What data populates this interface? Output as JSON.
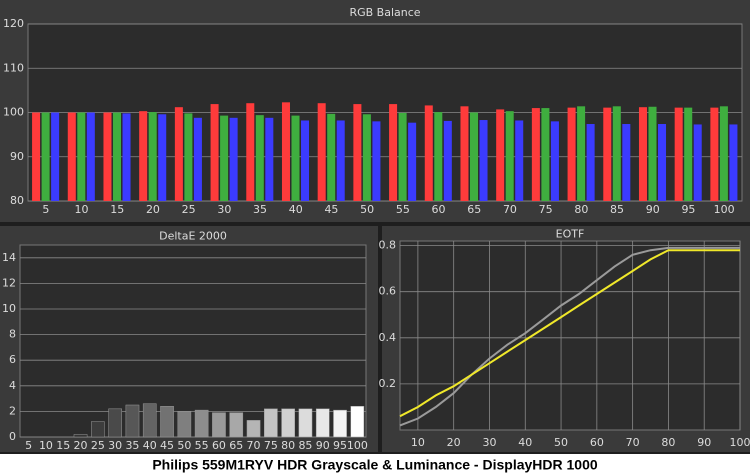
{
  "caption": "Philips 559M1RYV HDR Grayscale & Luminance - DisplayHDR 1000",
  "chart_data": [
    {
      "type": "bar",
      "title": "RGB Balance",
      "categories": [
        "5",
        "10",
        "15",
        "20",
        "25",
        "30",
        "35",
        "40",
        "45",
        "50",
        "55",
        "60",
        "65",
        "70",
        "75",
        "80",
        "85",
        "90",
        "95",
        "100"
      ],
      "series": [
        {
          "color": "#ff3b3b",
          "values": [
            100,
            100,
            100,
            100.3,
            101.2,
            101.9,
            102.1,
            102.3,
            102.1,
            101.9,
            101.9,
            101.6,
            101.4,
            100.7,
            101.0,
            101.1,
            101.1,
            101.2,
            101.1,
            101.1
          ]
        },
        {
          "color": "#3fae3f",
          "values": [
            100,
            100,
            100,
            100.1,
            99.8,
            99.3,
            99.4,
            99.3,
            99.7,
            99.6,
            99.9,
            100.1,
            100.0,
            100.3,
            101.0,
            101.4,
            101.4,
            101.3,
            101.1,
            101.4
          ]
        },
        {
          "color": "#3b3bff",
          "values": [
            100,
            100,
            99.8,
            99.6,
            98.8,
            98.8,
            98.8,
            98.2,
            98.2,
            98.0,
            97.7,
            98.1,
            98.3,
            98.2,
            98.0,
            97.4,
            97.4,
            97.4,
            97.3,
            97.3
          ]
        }
      ],
      "ylim": [
        80,
        120
      ],
      "yticks": [
        80,
        90,
        100,
        110,
        120
      ],
      "grid": true
    },
    {
      "type": "bar",
      "title": "DeltaE 2000",
      "categories": [
        "5",
        "10",
        "15",
        "20",
        "25",
        "30",
        "35",
        "40",
        "45",
        "50",
        "55",
        "60",
        "65",
        "70",
        "75",
        "80",
        "85",
        "90",
        "95",
        "100"
      ],
      "values": [
        0,
        0,
        0,
        0.2,
        1.2,
        2.2,
        2.5,
        2.6,
        2.4,
        2.0,
        2.1,
        1.9,
        1.9,
        1.3,
        2.2,
        2.2,
        2.2,
        2.2,
        2.1,
        2.4
      ],
      "colors": [
        "#1a1a1a",
        "#222222",
        "#2a2a2a",
        "#333333",
        "#3d3d3d",
        "#4a4a4a",
        "#575757",
        "#646464",
        "#727272",
        "#7f7f7f",
        "#8d8d8d",
        "#9a9a9a",
        "#a8a8a8",
        "#b5b5b5",
        "#c3c3c3",
        "#d0d0d0",
        "#dcdcdc",
        "#e8e8e8",
        "#f3f3f3",
        "#ffffff"
      ],
      "ylim": [
        0,
        15
      ],
      "yticks": [
        0,
        2,
        4,
        6,
        8,
        10,
        12,
        14
      ],
      "grid": true
    },
    {
      "type": "line",
      "title": "EOTF",
      "x": [
        5,
        10,
        15,
        20,
        25,
        30,
        35,
        40,
        45,
        50,
        55,
        60,
        65,
        70,
        75,
        80,
        85,
        90,
        95,
        100
      ],
      "series": [
        {
          "color": "#9a9a9a",
          "values": [
            0.02,
            0.05,
            0.1,
            0.16,
            0.24,
            0.31,
            0.37,
            0.42,
            0.48,
            0.54,
            0.59,
            0.65,
            0.71,
            0.76,
            0.78,
            0.79,
            0.79,
            0.79,
            0.79,
            0.79
          ]
        },
        {
          "color": "#f0e82a",
          "values": [
            0.06,
            0.1,
            0.15,
            0.19,
            0.24,
            0.29,
            0.34,
            0.39,
            0.44,
            0.49,
            0.54,
            0.59,
            0.64,
            0.69,
            0.74,
            0.78,
            0.78,
            0.78,
            0.78,
            0.78
          ]
        }
      ],
      "xlim": [
        5,
        100
      ],
      "xticks": [
        10,
        20,
        30,
        40,
        50,
        60,
        70,
        80,
        90,
        100
      ],
      "ylim": [
        0,
        0.82
      ],
      "yticks": [
        0.2,
        0.4,
        0.6,
        0.8
      ],
      "grid": true
    }
  ]
}
